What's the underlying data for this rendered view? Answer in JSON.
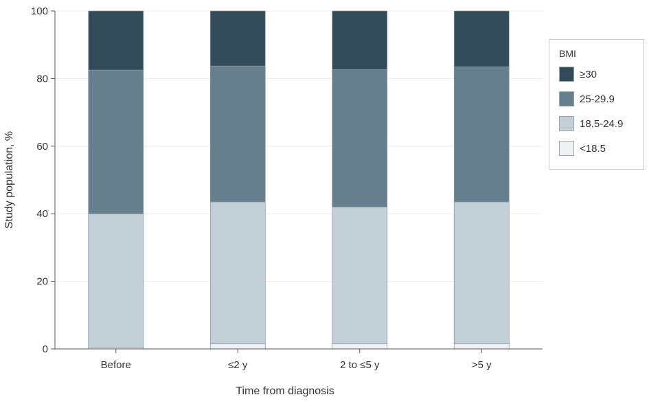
{
  "chart_data": {
    "type": "bar",
    "stacked": true,
    "categories": [
      "Before",
      "≤2 y",
      "2 to ≤5 y",
      ">5 y"
    ],
    "series": [
      {
        "name": "<18.5",
        "color": "#eef1f3",
        "values": [
          0.5,
          1.5,
          1.5,
          1.5
        ]
      },
      {
        "name": "18.5-24.9",
        "color": "#c3d0d8",
        "values": [
          39.5,
          42.0,
          40.5,
          42.0
        ]
      },
      {
        "name": "25-29.9",
        "color": "#657f8c",
        "values": [
          42.5,
          40.2,
          40.7,
          40.0
        ]
      },
      {
        "name": "≥30",
        "color": "#324b58",
        "values": [
          17.5,
          16.3,
          17.3,
          16.5
        ]
      }
    ],
    "xlabel": "Time from diagnosis",
    "ylabel": "Study population, %",
    "ylim": [
      0,
      100
    ],
    "yticks": [
      0,
      20,
      40,
      60,
      80,
      100
    ],
    "grid": true,
    "legend": {
      "title": "BMI",
      "position": "right",
      "order": [
        "≥30",
        "25-29.9",
        "18.5-24.9",
        "<18.5"
      ]
    }
  }
}
